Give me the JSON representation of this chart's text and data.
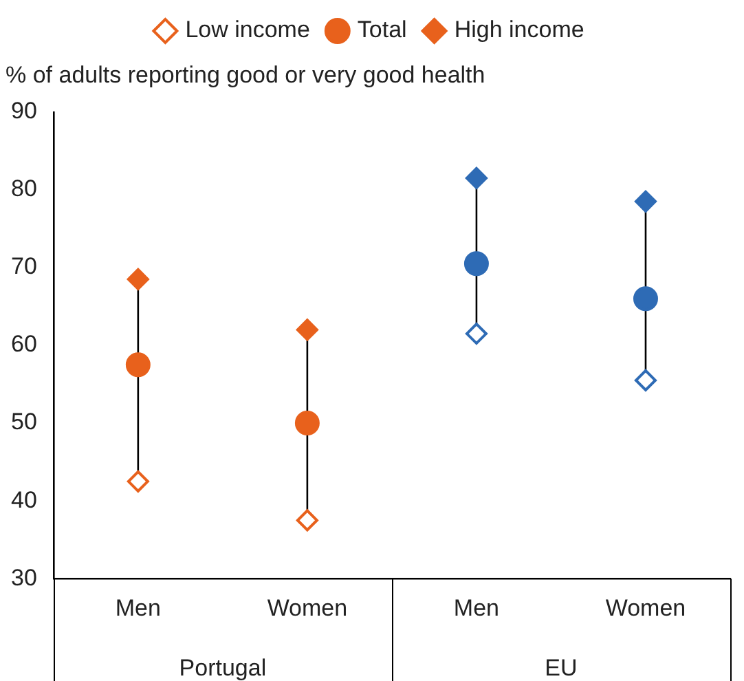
{
  "chart_data": {
    "type": "scatter",
    "ylabel": "% of adults reporting good or very good health",
    "categories": [
      "Men",
      "Women",
      "Men",
      "Women"
    ],
    "annotations": [
      "Portugal",
      "EU"
    ],
    "series": [
      {
        "name": "Low income",
        "color": "#e8611c",
        "colors": [
          "#e8611c",
          "#e8611c",
          "#2e6bb5",
          "#2e6bb5"
        ],
        "marker": "diamond-open",
        "values": [
          42.5,
          37.5,
          61.5,
          55.5
        ]
      },
      {
        "name": "Total",
        "color": "#e8611c",
        "colors": [
          "#e8611c",
          "#e8611c",
          "#2e6bb5",
          "#2e6bb5"
        ],
        "marker": "circle",
        "values": [
          57.5,
          50,
          70.5,
          66
        ]
      },
      {
        "name": "High income",
        "color": "#e8611c",
        "colors": [
          "#e8611c",
          "#e8611c",
          "#2e6bb5",
          "#2e6bb5"
        ],
        "marker": "diamond",
        "values": [
          68.5,
          62,
          81.5,
          78.5
        ]
      }
    ],
    "ylim": [
      30,
      90
    ],
    "yticks": [
      30,
      40,
      50,
      60,
      70,
      80,
      90
    ],
    "grid": false,
    "legend": "top"
  }
}
